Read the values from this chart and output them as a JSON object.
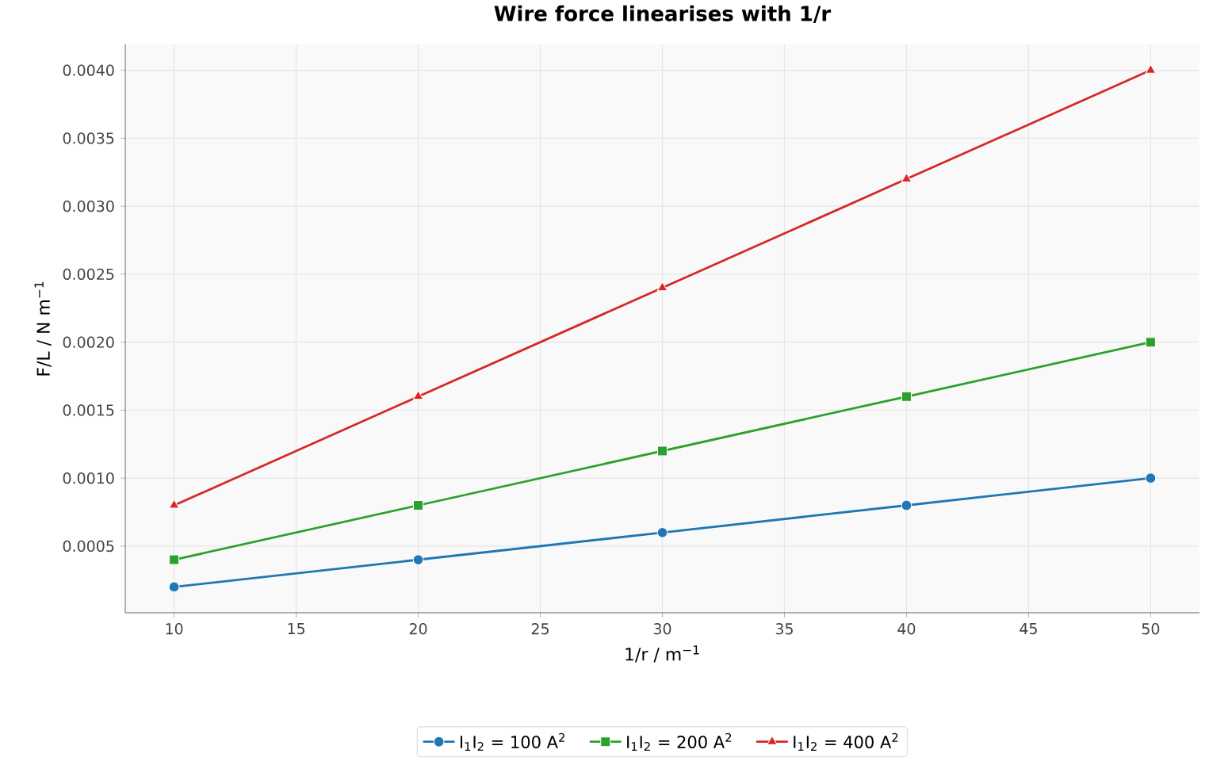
{
  "chart_data": {
    "type": "line",
    "title": "Wire force linearises with 1/r",
    "xlabel": "1/r / m$^{−1}$",
    "ylabel": "F/L / N m$^{−1}$",
    "x": [
      10,
      20,
      30,
      40,
      50
    ],
    "series": [
      {
        "name": "I$_{1}$I$_{2}$ = 100 A$^{2}$",
        "color": "#1f77b4",
        "marker": "circle",
        "values": [
          0.0002,
          0.0004,
          0.0006,
          0.0008,
          0.001
        ]
      },
      {
        "name": "I$_{1}$I$_{2}$ = 200 A$^{2}$",
        "color": "#2ca02c",
        "marker": "square",
        "values": [
          0.0004,
          0.0008,
          0.0012,
          0.0016,
          0.002
        ]
      },
      {
        "name": "I$_{1}$I$_{2}$ = 400 A$^{2}$",
        "color": "#d62728",
        "marker": "triangle",
        "values": [
          0.0008,
          0.0016,
          0.0024,
          0.0032,
          0.004
        ]
      }
    ],
    "xlim": [
      8,
      52
    ],
    "xticks": [
      10,
      15,
      20,
      25,
      30,
      35,
      40,
      45,
      50
    ],
    "ylim": [
      1e-05,
      0.00419
    ],
    "yticks": [
      {
        "value": 0.0005,
        "label": "0.0005"
      },
      {
        "value": 0.001,
        "label": "0.0010"
      },
      {
        "value": 0.0015,
        "label": "0.0015"
      },
      {
        "value": 0.002,
        "label": "0.0020"
      },
      {
        "value": 0.0025,
        "label": "0.0025"
      },
      {
        "value": 0.003,
        "label": "0.0030"
      },
      {
        "value": 0.0035,
        "label": "0.0035"
      },
      {
        "value": 0.004,
        "label": "0.0040"
      }
    ],
    "grid": true,
    "legend": "bottom",
    "line_style": "solid"
  }
}
